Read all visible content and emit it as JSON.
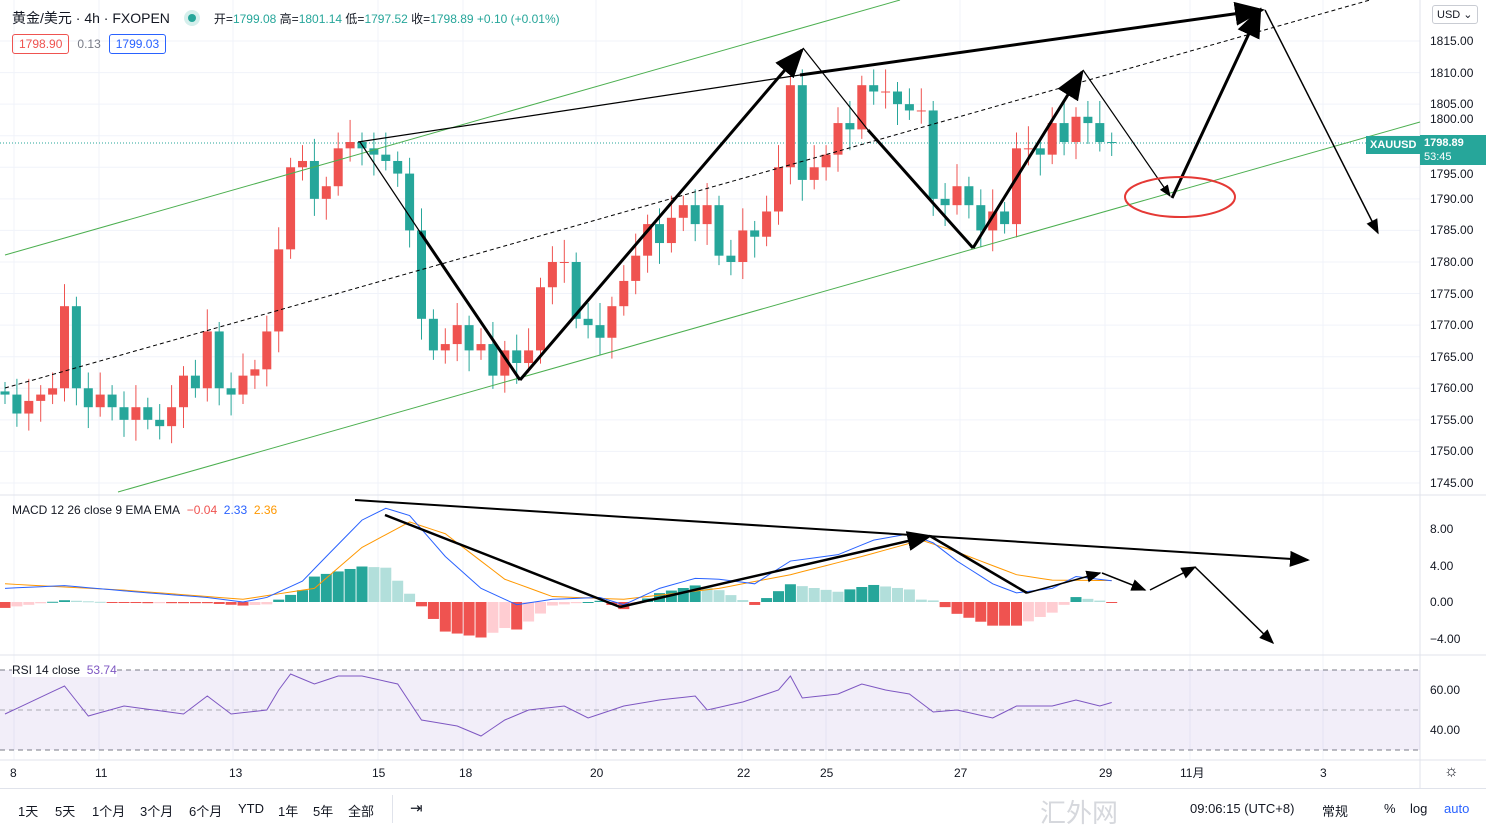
{
  "header": {
    "symbol": "黄金/美元 · 4h · FXOPEN",
    "open_label": "开=",
    "open": "1799.08",
    "high_label": "高=",
    "high": "1801.14",
    "low_label": "低=",
    "low": "1797.52",
    "close_label": "收=",
    "close": "1798.89",
    "change": "+0.10 (+0.01%)",
    "bid": "1798.90",
    "spread": "0.13",
    "ask": "1799.03"
  },
  "colors": {
    "up": "#ef5350",
    "down": "#26a69a",
    "macd": "#2962ff",
    "signal": "#ff9800",
    "rsi": "#7e57c2",
    "channel": "#4caf50"
  },
  "price_axis": {
    "currency": "USD",
    "labels": [
      "1815.00",
      "1810.00",
      "1805.00",
      "1800.00",
      "1795.00",
      "1790.00",
      "1785.00",
      "1780.00",
      "1775.00",
      "1770.00",
      "1765.00",
      "1760.00",
      "1755.00",
      "1750.00",
      "1745.00"
    ],
    "last_symbol": "XAUUSD",
    "last_price": "1798.89",
    "countdown": "53:45"
  },
  "macd": {
    "title": "MACD 12 26 close 9 EMA EMA",
    "hist": "−0.04",
    "macd": "2.33",
    "signal": "2.36",
    "axis": [
      "8.00",
      "4.00",
      "0.00",
      "−4.00"
    ]
  },
  "rsi": {
    "title": "RSI 14 close",
    "value": "53.74",
    "axis": [
      "60.00",
      "40.00"
    ]
  },
  "time_axis": [
    "8",
    "11",
    "13",
    "15",
    "18",
    "20",
    "22",
    "25",
    "27",
    "29",
    "11月",
    "3"
  ],
  "bottom": {
    "ranges": [
      "1天",
      "5天",
      "1个月",
      "3个月",
      "6个月",
      "YTD",
      "1年",
      "5年",
      "全部"
    ],
    "time": "09:06:15 (UTC+8)",
    "normal": "常规",
    "percent": "%",
    "log": "log",
    "auto": "auto",
    "watermark": "汇外网"
  },
  "chart_data": {
    "type": "candlestick",
    "closes": [
      1759,
      1756,
      1758,
      1759,
      1760,
      1773,
      1760,
      1757,
      1759,
      1757,
      1755,
      1757,
      1755,
      1754,
      1757,
      1762,
      1760,
      1769,
      1760,
      1759,
      1762,
      1763,
      1769,
      1782,
      1795,
      1796,
      1790,
      1792,
      1798,
      1799,
      1798,
      1797,
      1796,
      1794,
      1785,
      1771,
      1766,
      1767,
      1770,
      1766,
      1767,
      1762,
      1766,
      1764,
      1766,
      1776,
      1780,
      1780,
      1771,
      1770,
      1768,
      1773,
      1777,
      1781,
      1786,
      1783,
      1787,
      1789,
      1786,
      1789,
      1781,
      1780,
      1785,
      1784,
      1788,
      1795,
      1808,
      1793,
      1795,
      1797,
      1802,
      1801,
      1808,
      1807,
      1807,
      1805,
      1804,
      1804,
      1790,
      1789,
      1792,
      1789,
      1785,
      1788,
      1786,
      1798,
      1798,
      1797,
      1802,
      1799,
      1803,
      1802,
      1799,
      1798.89
    ],
    "ylim": [
      1743,
      1818
    ],
    "macd_keys": [
      [
        0,
        1.5
      ],
      [
        5,
        1.8
      ],
      [
        12,
        1.0
      ],
      [
        17,
        0.5
      ],
      [
        20,
        0
      ],
      [
        22,
        0.5
      ],
      [
        25,
        2.3
      ],
      [
        27,
        5
      ],
      [
        30,
        9
      ],
      [
        32,
        10.3
      ],
      [
        34,
        9.5
      ],
      [
        37,
        5
      ],
      [
        40,
        1.5
      ],
      [
        43,
        -0.3
      ],
      [
        46,
        0.3
      ],
      [
        50,
        0.5
      ],
      [
        52,
        -0.3
      ],
      [
        55,
        1.5
      ],
      [
        58,
        2.6
      ],
      [
        60,
        2.5
      ],
      [
        63,
        2.0
      ],
      [
        66,
        4.5
      ],
      [
        70,
        5.2
      ],
      [
        73,
        6.8
      ],
      [
        76,
        7.5
      ],
      [
        78,
        6.5
      ],
      [
        80,
        4.5
      ],
      [
        83,
        2.0
      ],
      [
        85,
        1.0
      ],
      [
        88,
        1.5
      ],
      [
        90,
        2.8
      ],
      [
        93,
        2.33
      ]
    ],
    "signal_keys": [
      [
        0,
        2.0
      ],
      [
        10,
        1.3
      ],
      [
        20,
        0.3
      ],
      [
        26,
        1.5
      ],
      [
        30,
        6
      ],
      [
        34,
        8.8
      ],
      [
        37,
        7.5
      ],
      [
        42,
        2.5
      ],
      [
        46,
        0.6
      ],
      [
        52,
        0.3
      ],
      [
        60,
        1.5
      ],
      [
        66,
        3.0
      ],
      [
        72,
        5.0
      ],
      [
        77,
        6.8
      ],
      [
        80,
        5.5
      ],
      [
        85,
        3.0
      ],
      [
        88,
        2.4
      ],
      [
        93,
        2.36
      ]
    ],
    "rsi_keys": [
      [
        0,
        48
      ],
      [
        5,
        62
      ],
      [
        7,
        47
      ],
      [
        10,
        52
      ],
      [
        15,
        48
      ],
      [
        17,
        57
      ],
      [
        19,
        48
      ],
      [
        22,
        50
      ],
      [
        23,
        60
      ],
      [
        24,
        68
      ],
      [
        26,
        63
      ],
      [
        28,
        67
      ],
      [
        30,
        67
      ],
      [
        33,
        63
      ],
      [
        35,
        45
      ],
      [
        38,
        42
      ],
      [
        40,
        37
      ],
      [
        42,
        45
      ],
      [
        44,
        50
      ],
      [
        47,
        52
      ],
      [
        49,
        46
      ],
      [
        52,
        52
      ],
      [
        55,
        55
      ],
      [
        58,
        57
      ],
      [
        59,
        50
      ],
      [
        62,
        54
      ],
      [
        65,
        60
      ],
      [
        66,
        67
      ],
      [
        67,
        56
      ],
      [
        70,
        58
      ],
      [
        72,
        63
      ],
      [
        74,
        60
      ],
      [
        76,
        58
      ],
      [
        78,
        49
      ],
      [
        80,
        50
      ],
      [
        83,
        46
      ],
      [
        85,
        52
      ],
      [
        88,
        52
      ],
      [
        90,
        55
      ],
      [
        92,
        52
      ],
      [
        93,
        53.74
      ]
    ]
  }
}
